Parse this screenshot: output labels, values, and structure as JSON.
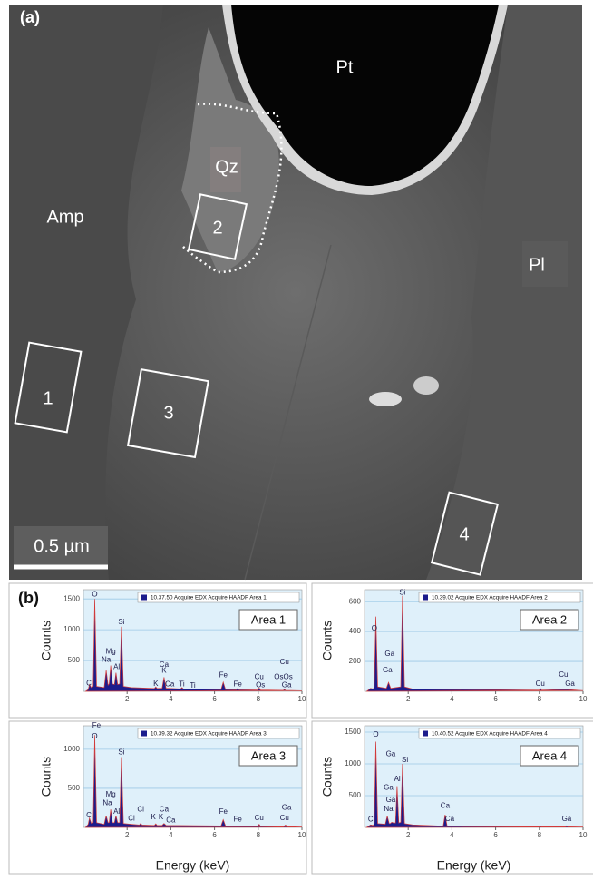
{
  "image": {
    "panel_label": "(a)",
    "labels": [
      "Pt",
      "Qz",
      "Amp",
      "Pl"
    ],
    "areas": [
      "1",
      "2",
      "3",
      "4"
    ],
    "scale_bar": "0.5 µm"
  },
  "panel_b_label": "(b)",
  "chart_data": [
    {
      "type": "area",
      "title": "Area 1",
      "ylabel": "Counts",
      "grid": true,
      "xlim": [
        0,
        10
      ],
      "xticks": [
        2,
        4,
        6,
        8,
        10
      ],
      "ylim": [
        0,
        1650
      ],
      "yticks": [
        500,
        1000,
        1500
      ],
      "series": [
        {
          "name": "10.37.50 Acquire EDX Acquire HAADF Area 1",
          "color": "#1c1c8c",
          "x": [
            0.1,
            0.22,
            0.28,
            0.36,
            0.45,
            0.52,
            0.6,
            0.95,
            1.04,
            1.13,
            1.18,
            1.25,
            1.33,
            1.42,
            1.49,
            1.57,
            1.66,
            1.74,
            1.83,
            2.2,
            3.25,
            3.31,
            3.37,
            3.6,
            3.69,
            3.78,
            4.45,
            4.51,
            4.57,
            6.3,
            6.4,
            6.5,
            7.0,
            7.06,
            7.12,
            7.98,
            8.04,
            8.1,
            9.15,
            9.2,
            9.25,
            10
          ],
          "values": [
            0,
            30,
            110,
            60,
            80,
            1500,
            80,
            60,
            340,
            100,
            120,
            420,
            120,
            110,
            300,
            110,
            120,
            1050,
            80,
            60,
            45,
            70,
            45,
            50,
            230,
            50,
            40,
            60,
            40,
            30,
            150,
            30,
            25,
            45,
            25,
            20,
            55,
            20,
            15,
            35,
            15,
            10
          ]
        }
      ],
      "annotations": [
        {
          "text": "C",
          "x": 0.25,
          "y": 130
        },
        {
          "text": "O",
          "x": 0.52,
          "y": 1570
        },
        {
          "text": "Mg",
          "x": 1.25,
          "y": 640
        },
        {
          "text": "Na",
          "x": 1.04,
          "y": 510
        },
        {
          "text": "Al",
          "x": 1.52,
          "y": 390
        },
        {
          "text": "Si",
          "x": 1.74,
          "y": 1120
        },
        {
          "text": "Ca",
          "x": 3.69,
          "y": 430
        },
        {
          "text": "K",
          "x": 3.69,
          "y": 330
        },
        {
          "text": "K",
          "x": 3.31,
          "y": 120
        },
        {
          "text": "Ca",
          "x": 3.95,
          "y": 110
        },
        {
          "text": "Ti",
          "x": 4.5,
          "y": 110
        },
        {
          "text": "Ti",
          "x": 5.0,
          "y": 90
        },
        {
          "text": "Fe",
          "x": 6.4,
          "y": 260
        },
        {
          "text": "Fe",
          "x": 7.06,
          "y": 110
        },
        {
          "text": "Cu",
          "x": 8.04,
          "y": 230
        },
        {
          "text": "Os",
          "x": 8.1,
          "y": 100
        },
        {
          "text": "OsOs",
          "x": 9.15,
          "y": 230
        },
        {
          "text": "Cu",
          "x": 9.2,
          "y": 470
        },
        {
          "text": "Ga",
          "x": 9.3,
          "y": 100
        }
      ]
    },
    {
      "type": "area",
      "title": "Area 2",
      "ylabel": "Counts",
      "grid": true,
      "xlim": [
        0,
        10
      ],
      "xticks": [
        2,
        4,
        6,
        8,
        10
      ],
      "ylim": [
        0,
        680
      ],
      "yticks": [
        200,
        400,
        600
      ],
      "series": [
        {
          "name": "10.39.02 Acquire EDX Acquire HAADF Area 2",
          "color": "#1c1c8c",
          "x": [
            0.1,
            0.28,
            0.4,
            0.45,
            0.52,
            0.6,
            1.0,
            1.1,
            1.2,
            1.66,
            1.74,
            1.83,
            2.2,
            8.0,
            8.04,
            8.1,
            9.2,
            10
          ],
          "values": [
            0,
            20,
            15,
            30,
            500,
            30,
            20,
            60,
            20,
            30,
            640,
            30,
            15,
            8,
            20,
            8,
            12,
            5
          ]
        }
      ],
      "annotations": [
        {
          "text": "Si",
          "x": 1.74,
          "y": 660
        },
        {
          "text": "O",
          "x": 0.45,
          "y": 420
        },
        {
          "text": "Ga",
          "x": 1.15,
          "y": 250
        },
        {
          "text": "Ga",
          "x": 1.05,
          "y": 140
        },
        {
          "text": "Cu",
          "x": 8.04,
          "y": 50
        },
        {
          "text": "Cu",
          "x": 9.1,
          "y": 110
        },
        {
          "text": "Ga",
          "x": 9.4,
          "y": 50
        }
      ]
    },
    {
      "type": "area",
      "title": "Area 3",
      "ylabel": "Counts",
      "xlabel": "Energy (keV)",
      "grid": true,
      "xlim": [
        0,
        10
      ],
      "xticks": [
        2,
        4,
        6,
        8,
        10
      ],
      "ylim": [
        0,
        1300
      ],
      "yticks": [
        500,
        1000
      ],
      "series": [
        {
          "name": "10.39.32 Acquire EDX Acquire HAADF Area 3",
          "color": "#1c1c8c",
          "x": [
            0.1,
            0.22,
            0.28,
            0.36,
            0.45,
            0.52,
            0.6,
            0.95,
            1.04,
            1.13,
            1.18,
            1.25,
            1.33,
            1.42,
            1.49,
            1.57,
            1.66,
            1.74,
            1.83,
            2.2,
            2.56,
            2.62,
            2.68,
            3.25,
            3.31,
            3.37,
            3.6,
            3.69,
            3.78,
            6.3,
            6.4,
            6.5,
            7.98,
            8.04,
            8.1,
            9.15,
            9.25,
            9.35,
            10
          ],
          "values": [
            0,
            40,
            120,
            50,
            60,
            1180,
            60,
            40,
            150,
            60,
            60,
            230,
            60,
            60,
            150,
            60,
            60,
            900,
            50,
            40,
            30,
            50,
            30,
            25,
            45,
            25,
            25,
            50,
            25,
            20,
            100,
            20,
            15,
            40,
            15,
            10,
            30,
            10,
            5
          ]
        }
      ],
      "annotations": [
        {
          "text": "Fe",
          "x": 0.6,
          "y": 1300
        },
        {
          "text": "O",
          "x": 0.52,
          "y": 1160
        },
        {
          "text": "C",
          "x": 0.25,
          "y": 150
        },
        {
          "text": "Mg",
          "x": 1.25,
          "y": 420
        },
        {
          "text": "Na",
          "x": 1.1,
          "y": 310
        },
        {
          "text": "Al",
          "x": 1.52,
          "y": 200
        },
        {
          "text": "Si",
          "x": 1.74,
          "y": 960
        },
        {
          "text": "Cl",
          "x": 2.62,
          "y": 230
        },
        {
          "text": "Cl",
          "x": 2.2,
          "y": 110
        },
        {
          "text": "K",
          "x": 3.2,
          "y": 130
        },
        {
          "text": "Ca",
          "x": 3.69,
          "y": 230
        },
        {
          "text": "K",
          "x": 3.55,
          "y": 130
        },
        {
          "text": "Ca",
          "x": 4.0,
          "y": 90
        },
        {
          "text": "Fe",
          "x": 6.4,
          "y": 200
        },
        {
          "text": "Fe",
          "x": 7.06,
          "y": 100
        },
        {
          "text": "Cu",
          "x": 8.04,
          "y": 120
        },
        {
          "text": "Ga",
          "x": 9.3,
          "y": 250
        },
        {
          "text": "Cu",
          "x": 9.2,
          "y": 120
        }
      ]
    },
    {
      "type": "area",
      "title": "Area 4",
      "ylabel": "Counts",
      "xlabel": "Energy (keV)",
      "grid": true,
      "xlim": [
        0,
        10
      ],
      "xticks": [
        2,
        4,
        6,
        8,
        10
      ],
      "ylim": [
        0,
        1600
      ],
      "yticks": [
        500,
        1000,
        1500
      ],
      "series": [
        {
          "name": "10.40.52 Acquire EDX Acquire HAADF Area 4",
          "color": "#1c1c8c",
          "x": [
            0.1,
            0.28,
            0.4,
            0.45,
            0.52,
            0.6,
            0.95,
            1.04,
            1.13,
            1.18,
            1.25,
            1.33,
            1.42,
            1.49,
            1.57,
            1.66,
            1.74,
            1.83,
            2.2,
            3.6,
            3.69,
            3.78,
            7.98,
            8.04,
            8.1,
            9.15,
            9.25,
            9.35,
            10
          ],
          "values": [
            0,
            40,
            30,
            60,
            1350,
            60,
            50,
            180,
            60,
            60,
            80,
            70,
            70,
            650,
            70,
            80,
            1000,
            60,
            40,
            20,
            200,
            20,
            10,
            25,
            10,
            8,
            25,
            8,
            5
          ]
        }
      ],
      "annotations": [
        {
          "text": "O",
          "x": 0.52,
          "y": 1460
        },
        {
          "text": "C",
          "x": 0.28,
          "y": 120
        },
        {
          "text": "Ga",
          "x": 1.2,
          "y": 1150
        },
        {
          "text": "Ga",
          "x": 1.2,
          "y": 430
        },
        {
          "text": "Na",
          "x": 1.1,
          "y": 290
        },
        {
          "text": "Al",
          "x": 1.5,
          "y": 760
        },
        {
          "text": "Si",
          "x": 1.85,
          "y": 1060
        },
        {
          "text": "Ga",
          "x": 1.1,
          "y": 620
        },
        {
          "text": "Ca",
          "x": 3.69,
          "y": 340
        },
        {
          "text": "Ca",
          "x": 3.9,
          "y": 130
        },
        {
          "text": "Ga",
          "x": 9.25,
          "y": 130
        }
      ]
    }
  ]
}
